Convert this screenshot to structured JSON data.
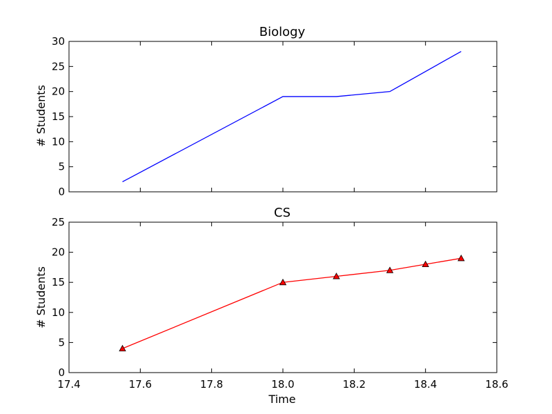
{
  "chart_data": [
    {
      "type": "line",
      "title": "Biology",
      "xlabel": "",
      "ylabel": "# Students",
      "xlim": [
        17.4,
        18.6
      ],
      "ylim": [
        0,
        30
      ],
      "x_ticks": [
        "17.4",
        "17.6",
        "17.8",
        "18.0",
        "18.2",
        "18.4",
        "18.6"
      ],
      "x_tick_labels_visible": false,
      "y_ticks": [
        "0",
        "5",
        "10",
        "15",
        "20",
        "25",
        "30"
      ],
      "grid": false,
      "series": [
        {
          "x": [
            17.55,
            18.0,
            18.15,
            18.3,
            18.5
          ],
          "y": [
            2,
            19,
            19,
            20,
            28
          ],
          "color": "#0000ff",
          "marker": "none"
        }
      ]
    },
    {
      "type": "line",
      "title": "CS",
      "xlabel": "Time",
      "ylabel": "# Students",
      "xlim": [
        17.4,
        18.6
      ],
      "ylim": [
        0,
        25
      ],
      "x_ticks": [
        "17.4",
        "17.6",
        "17.8",
        "18.0",
        "18.2",
        "18.4",
        "18.6"
      ],
      "x_tick_labels_visible": true,
      "y_ticks": [
        "0",
        "5",
        "10",
        "15",
        "20",
        "25"
      ],
      "grid": false,
      "series": [
        {
          "x": [
            17.55,
            18.0,
            18.15,
            18.3,
            18.4,
            18.5
          ],
          "y": [
            4,
            15,
            16,
            17,
            18,
            19
          ],
          "color": "#ff0000",
          "marker": "triangle"
        }
      ]
    }
  ]
}
